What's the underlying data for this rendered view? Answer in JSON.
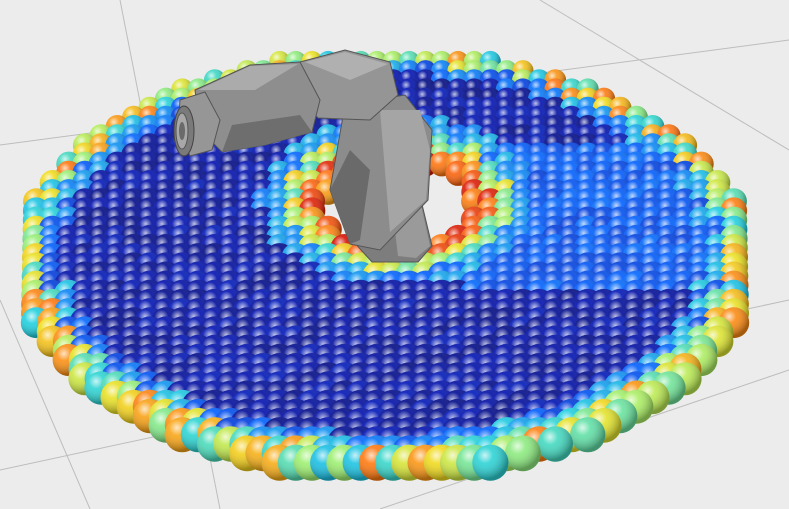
{
  "scene": {
    "background": "#ececec",
    "grid_color": "#bdbdbd",
    "robot_color": "#8a8a8a",
    "colormap": [
      "#00004a",
      "#0010b0",
      "#0060ff",
      "#20d0e0",
      "#a0f070",
      "#f0e020",
      "#ff7010",
      "#d00000"
    ]
  }
}
